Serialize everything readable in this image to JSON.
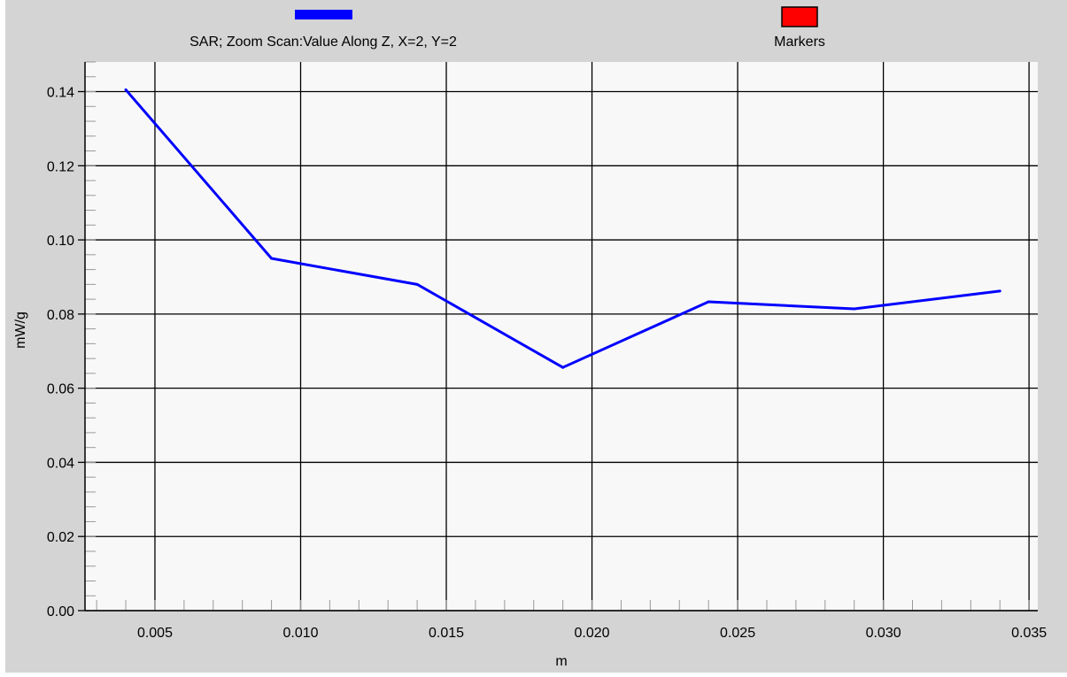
{
  "chart_data": {
    "type": "line",
    "title": "",
    "xlabel": "m",
    "ylabel": "mW/g",
    "xlim": [
      0.0026,
      0.0353
    ],
    "ylim": [
      0.0,
      0.148
    ],
    "grid": true,
    "legend_position": "top",
    "x_ticks": [
      "0.005",
      "0.010",
      "0.015",
      "0.020",
      "0.025",
      "0.030",
      "0.035"
    ],
    "y_ticks": [
      "0.00",
      "0.02",
      "0.04",
      "0.06",
      "0.08",
      "0.10",
      "0.12",
      "0.14"
    ],
    "legend": [
      {
        "label": "SAR; Zoom Scan:Value Along Z, X=2, Y=2",
        "color": "#0000ff"
      },
      {
        "label": "Markers",
        "color": "#ff0000"
      }
    ],
    "series": [
      {
        "name": "SAR; Zoom Scan:Value Along Z, X=2, Y=2",
        "color": "#0000ff",
        "x": [
          0.004,
          0.009,
          0.014,
          0.019,
          0.024,
          0.029,
          0.034
        ],
        "y": [
          0.1405,
          0.095,
          0.088,
          0.0656,
          0.0833,
          0.0814,
          0.0862
        ]
      }
    ]
  },
  "colors": {
    "outer_background": "#d4d4d4",
    "plot_background": "#f8f8f8",
    "grid": "#000000",
    "line": "#0000ff",
    "marker_swatch": "#ff0000"
  }
}
